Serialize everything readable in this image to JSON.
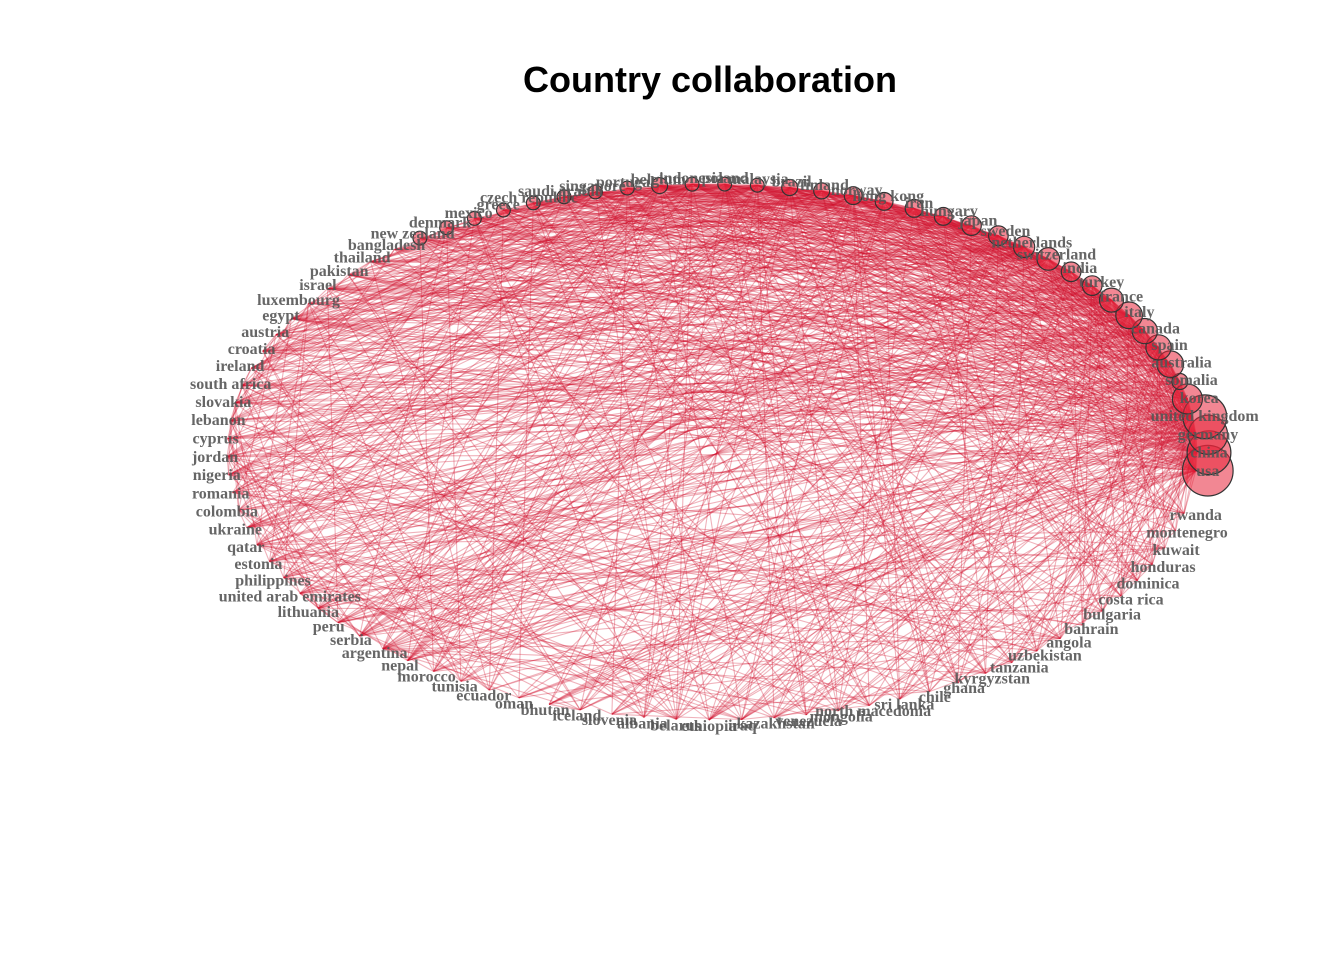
{
  "title": "Country collaboration",
  "colors": {
    "edge": "#D0102C",
    "node": "#E8253A",
    "label": "#555555"
  },
  "countries": [
    {
      "name": "usa",
      "weight": 40
    },
    {
      "name": "china",
      "weight": 30
    },
    {
      "name": "germany",
      "weight": 24
    },
    {
      "name": "united kingdom",
      "weight": 30
    },
    {
      "name": "korea",
      "weight": 14
    },
    {
      "name": "somalia",
      "weight": 4
    },
    {
      "name": "australia",
      "weight": 11
    },
    {
      "name": "spain",
      "weight": 10
    },
    {
      "name": "canada",
      "weight": 10
    },
    {
      "name": "italy",
      "weight": 11
    },
    {
      "name": "france",
      "weight": 9
    },
    {
      "name": "turkey",
      "weight": 6
    },
    {
      "name": "india",
      "weight": 6
    },
    {
      "name": "switzerland",
      "weight": 8
    },
    {
      "name": "netherlands",
      "weight": 7
    },
    {
      "name": "sweden",
      "weight": 6
    },
    {
      "name": "japan",
      "weight": 6
    },
    {
      "name": "hungary",
      "weight": 5
    },
    {
      "name": "iran",
      "weight": 5
    },
    {
      "name": "hong kong",
      "weight": 5
    },
    {
      "name": "norway",
      "weight": 5
    },
    {
      "name": "finland",
      "weight": 4
    },
    {
      "name": "brazil",
      "weight": 4
    },
    {
      "name": "malaysia",
      "weight": 3
    },
    {
      "name": "poland",
      "weight": 3
    },
    {
      "name": "indonesia",
      "weight": 3
    },
    {
      "name": "belgium",
      "weight": 4
    },
    {
      "name": "portugal",
      "weight": 3
    },
    {
      "name": "singapore",
      "weight": 3
    },
    {
      "name": "saudi arabia",
      "weight": 3
    },
    {
      "name": "czech republic",
      "weight": 3
    },
    {
      "name": "greece",
      "weight": 3
    },
    {
      "name": "mexico",
      "weight": 3
    },
    {
      "name": "denmark",
      "weight": 3
    },
    {
      "name": "new zealand",
      "weight": 3
    },
    {
      "name": "bangladesh",
      "weight": 2
    },
    {
      "name": "thailand",
      "weight": 2
    },
    {
      "name": "pakistan",
      "weight": 2
    },
    {
      "name": "israel",
      "weight": 2
    },
    {
      "name": "luxembourg",
      "weight": 2
    },
    {
      "name": "egypt",
      "weight": 2
    },
    {
      "name": "austria",
      "weight": 2
    },
    {
      "name": "croatia",
      "weight": 2
    },
    {
      "name": "ireland",
      "weight": 2
    },
    {
      "name": "south africa",
      "weight": 2
    },
    {
      "name": "slovakia",
      "weight": 2
    },
    {
      "name": "lebanon",
      "weight": 2
    },
    {
      "name": "cyprus",
      "weight": 2
    },
    {
      "name": "jordan",
      "weight": 2
    },
    {
      "name": "nigeria",
      "weight": 2
    },
    {
      "name": "romania",
      "weight": 2
    },
    {
      "name": "colombia",
      "weight": 2
    },
    {
      "name": "ukraine",
      "weight": 2
    },
    {
      "name": "qatar",
      "weight": 2
    },
    {
      "name": "estonia",
      "weight": 2
    },
    {
      "name": "philippines",
      "weight": 2
    },
    {
      "name": "united arab emirates",
      "weight": 2
    },
    {
      "name": "lithuania",
      "weight": 2
    },
    {
      "name": "peru",
      "weight": 2
    },
    {
      "name": "serbia",
      "weight": 2
    },
    {
      "name": "argentina",
      "weight": 2
    },
    {
      "name": "nepal",
      "weight": 2
    },
    {
      "name": "morocco",
      "weight": 2
    },
    {
      "name": "tunisia",
      "weight": 1
    },
    {
      "name": "ecuador",
      "weight": 1
    },
    {
      "name": "oman",
      "weight": 1
    },
    {
      "name": "bhutan",
      "weight": 1
    },
    {
      "name": "iceland",
      "weight": 1
    },
    {
      "name": "slovenia",
      "weight": 1
    },
    {
      "name": "albania",
      "weight": 1
    },
    {
      "name": "belarus",
      "weight": 1
    },
    {
      "name": "ethiopia",
      "weight": 1
    },
    {
      "name": "iraq",
      "weight": 1
    },
    {
      "name": "kazakhstan",
      "weight": 1
    },
    {
      "name": "venezuela",
      "weight": 1
    },
    {
      "name": "mongolia",
      "weight": 1
    },
    {
      "name": "north macedonia",
      "weight": 1
    },
    {
      "name": "sri lanka",
      "weight": 1
    },
    {
      "name": "chile",
      "weight": 1
    },
    {
      "name": "ghana",
      "weight": 1
    },
    {
      "name": "kyrgyzstan",
      "weight": 1
    },
    {
      "name": "tanzania",
      "weight": 1
    },
    {
      "name": "uzbekistan",
      "weight": 1
    },
    {
      "name": "angola",
      "weight": 1
    },
    {
      "name": "bahrain",
      "weight": 1
    },
    {
      "name": "bulgaria",
      "weight": 1
    },
    {
      "name": "costa rica",
      "weight": 1
    },
    {
      "name": "dominica",
      "weight": 1
    },
    {
      "name": "honduras",
      "weight": 1
    },
    {
      "name": "kuwait",
      "weight": 1
    },
    {
      "name": "montenegro",
      "weight": 1
    },
    {
      "name": "rwanda",
      "weight": 1
    }
  ]
}
